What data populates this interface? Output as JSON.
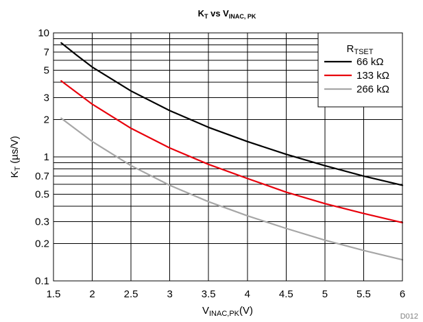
{
  "chart_data": {
    "type": "line",
    "title": "K",
    "title_sub": "T",
    "title_mid": " vs V",
    "title_sub2": "INAC, PK",
    "xlabel": "V",
    "xlabel_sub": "INAC,PK",
    "xlabel_suffix": "(V)",
    "ylabel": "K",
    "ylabel_sub": "T",
    "ylabel_suffix": " (µs/V)",
    "x_scale": "linear",
    "y_scale": "log",
    "xlim": [
      1.5,
      6
    ],
    "ylim": [
      0.1,
      10
    ],
    "x_ticks": [
      1.5,
      2,
      2.5,
      3,
      3.5,
      4,
      4.5,
      5,
      5.5,
      6
    ],
    "x_tick_labels": [
      "1.5",
      "2",
      "2.5",
      "3",
      "3.5",
      "4",
      "4.5",
      "5",
      "5.5",
      "6"
    ],
    "y_ticks": [
      0.1,
      0.2,
      0.3,
      0.5,
      0.7,
      1,
      2,
      3,
      5,
      7,
      10
    ],
    "y_tick_labels": [
      "0.1",
      "0.2",
      "0.3",
      "0.5",
      "0.7",
      "1",
      "2",
      "3",
      "5",
      "7",
      "10"
    ],
    "y_gridlines": [
      0.1,
      0.2,
      0.3,
      0.4,
      0.5,
      0.6,
      0.7,
      0.8,
      0.9,
      1,
      2,
      3,
      4,
      5,
      6,
      7,
      8,
      9,
      10
    ],
    "grid": true,
    "legend": {
      "title": "R",
      "title_sub": "TSET",
      "position": "top-right"
    },
    "series": [
      {
        "name": "66 kΩ",
        "color": "#000000",
        "x": [
          1.6,
          1.8,
          2.0,
          2.5,
          3.0,
          3.5,
          4.0,
          4.5,
          5.0,
          5.5,
          6.0
        ],
        "y": [
          8.3,
          6.6,
          5.3,
          3.4,
          2.36,
          1.73,
          1.33,
          1.05,
          0.85,
          0.7,
          0.59
        ]
      },
      {
        "name": "133 kΩ",
        "color": "#e8000b",
        "x": [
          1.6,
          1.8,
          2.0,
          2.5,
          3.0,
          3.5,
          4.0,
          4.5,
          5.0,
          5.5,
          6.0
        ],
        "y": [
          4.1,
          3.3,
          2.66,
          1.7,
          1.18,
          0.87,
          0.67,
          0.52,
          0.42,
          0.35,
          0.295
        ]
      },
      {
        "name": "266 kΩ",
        "color": "#a6a6a6",
        "x": [
          1.6,
          1.8,
          2.0,
          2.5,
          3.0,
          3.5,
          4.0,
          4.5,
          5.0,
          5.5,
          6.0
        ],
        "y": [
          2.05,
          1.65,
          1.33,
          0.85,
          0.59,
          0.435,
          0.335,
          0.265,
          0.213,
          0.176,
          0.148
        ]
      }
    ]
  },
  "footer": {
    "code": "D012"
  }
}
